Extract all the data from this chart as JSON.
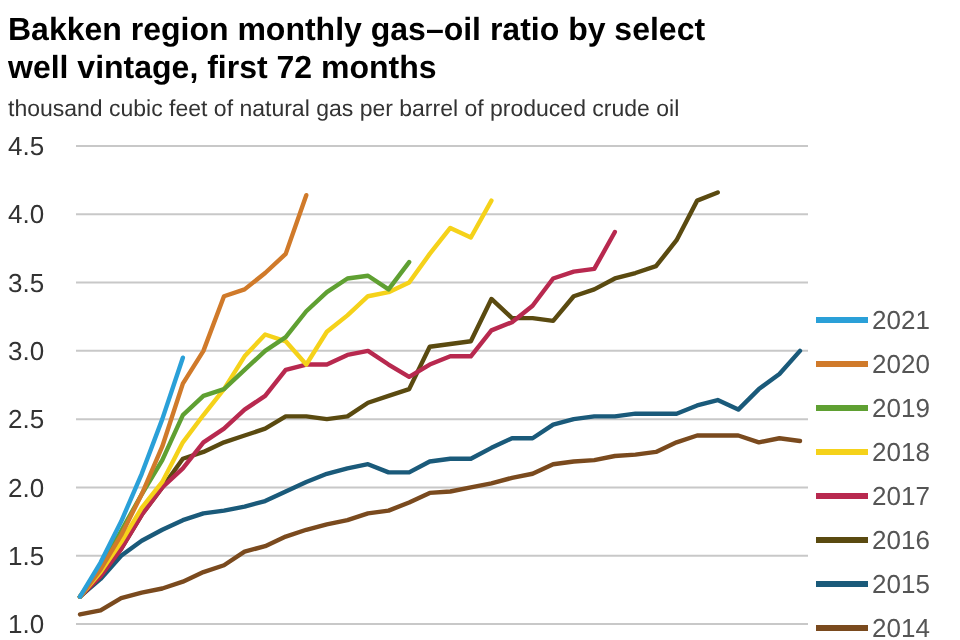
{
  "chart_data": {
    "type": "line",
    "title": "Bakken region monthly gas–oil ratio by select well vintage, first 72 months",
    "subtitle": "thousand cubic feet of natural gas per barrel of produced crude oil",
    "categories": [
      null,
      null,
      null,
      null,
      null,
      null,
      null,
      null,
      null,
      null,
      null,
      null,
      null,
      null,
      null,
      null,
      null,
      null,
      null,
      null,
      null,
      null,
      null,
      null,
      null,
      null,
      null,
      null,
      null,
      null,
      null,
      null,
      null,
      null,
      null,
      null
    ],
    "ylim": [
      1,
      4.5
    ],
    "yticks": [
      {
        "value": 1,
        "label": "1.0"
      },
      1.5,
      {
        "value": 2,
        "label": "2.0"
      },
      2.5,
      {
        "value": 3,
        "label": "3.0"
      },
      3.5,
      {
        "value": 4,
        "label": "4.0"
      },
      4.5
    ],
    "grid": "y",
    "legend": "right",
    "tick_labels": "y",
    "marker": "none",
    "line_style": "solid",
    "series": [
      {
        "name": "2021",
        "color": "#2aa0d8",
        "values": [
          1.2,
          1.45,
          1.75,
          2.1,
          2.5,
          2.95,
          null,
          null,
          null,
          null,
          null,
          null,
          null,
          null,
          null,
          null,
          null,
          null,
          null,
          null,
          null,
          null,
          null,
          null,
          null,
          null,
          null,
          null,
          null,
          null,
          null,
          null,
          null,
          null,
          null,
          null
        ]
      },
      {
        "name": "2020",
        "color": "#d07a2a",
        "values": [
          1.2,
          1.4,
          1.65,
          1.95,
          2.3,
          2.76,
          3.0,
          3.4,
          3.45,
          3.57,
          3.71,
          4.14,
          null,
          null,
          null,
          null,
          null,
          null,
          null,
          null,
          null,
          null,
          null,
          null,
          null,
          null,
          null,
          null,
          null,
          null,
          null,
          null,
          null,
          null,
          null,
          null
        ]
      },
      {
        "name": "2019",
        "color": "#5fa032",
        "values": [
          1.2,
          1.42,
          1.68,
          1.95,
          2.2,
          2.53,
          2.67,
          2.72,
          2.86,
          3.0,
          3.1,
          3.29,
          3.43,
          3.53,
          3.55,
          3.45,
          3.65,
          null,
          null,
          null,
          null,
          null,
          null,
          null,
          null,
          null,
          null,
          null,
          null,
          null,
          null,
          null,
          null,
          null,
          null,
          null
        ]
      },
      {
        "name": "2018",
        "color": "#f5d21a",
        "values": [
          1.2,
          1.38,
          1.6,
          1.85,
          2.04,
          2.33,
          2.53,
          2.72,
          2.96,
          3.12,
          3.07,
          2.9,
          3.14,
          3.26,
          3.4,
          3.43,
          3.5,
          3.71,
          3.9,
          3.83,
          4.1,
          null,
          null,
          null,
          null,
          null,
          null,
          null,
          null,
          null,
          null,
          null,
          null,
          null,
          null,
          null
        ]
      },
      {
        "name": "2017",
        "color": "#b8294f",
        "values": [
          1.2,
          1.35,
          1.55,
          1.8,
          2.0,
          2.14,
          2.33,
          2.43,
          2.57,
          2.67,
          2.86,
          2.9,
          2.9,
          2.97,
          3.0,
          2.9,
          2.81,
          2.9,
          2.96,
          2.96,
          3.15,
          3.21,
          3.33,
          3.53,
          3.58,
          3.6,
          3.87,
          null,
          null,
          null,
          null,
          null,
          null,
          null,
          null,
          null
        ]
      },
      {
        "name": "2016",
        "color": "#5a4a10",
        "values": [
          1.2,
          1.35,
          1.55,
          1.8,
          2.0,
          2.21,
          2.26,
          2.33,
          2.38,
          2.43,
          2.52,
          2.52,
          2.5,
          2.52,
          2.62,
          2.67,
          2.72,
          3.03,
          3.05,
          3.07,
          3.38,
          3.24,
          3.24,
          3.22,
          3.4,
          3.45,
          3.53,
          3.57,
          3.62,
          3.81,
          4.1,
          4.16,
          null,
          null,
          null,
          null
        ]
      },
      {
        "name": "2015",
        "color": "#1a5a7a",
        "values": [
          1.2,
          1.33,
          1.5,
          1.61,
          1.69,
          1.76,
          1.81,
          1.83,
          1.86,
          1.9,
          1.97,
          2.04,
          2.1,
          2.14,
          2.17,
          2.11,
          2.11,
          2.19,
          2.21,
          2.21,
          2.29,
          2.36,
          2.36,
          2.46,
          2.5,
          2.52,
          2.52,
          2.54,
          2.54,
          2.54,
          2.6,
          2.64,
          2.57,
          2.72,
          2.83,
          3.0
        ]
      },
      {
        "name": "2014",
        "color": "#7a4a1e",
        "values": [
          1.07,
          1.1,
          1.19,
          1.23,
          1.26,
          1.31,
          1.38,
          1.43,
          1.53,
          1.57,
          1.64,
          1.69,
          1.73,
          1.76,
          1.81,
          1.83,
          1.89,
          1.96,
          1.97,
          2.0,
          2.03,
          2.07,
          2.1,
          2.17,
          2.19,
          2.2,
          2.23,
          2.24,
          2.26,
          2.33,
          2.38,
          2.38,
          2.38,
          2.33,
          2.36,
          2.34
        ]
      }
    ]
  }
}
